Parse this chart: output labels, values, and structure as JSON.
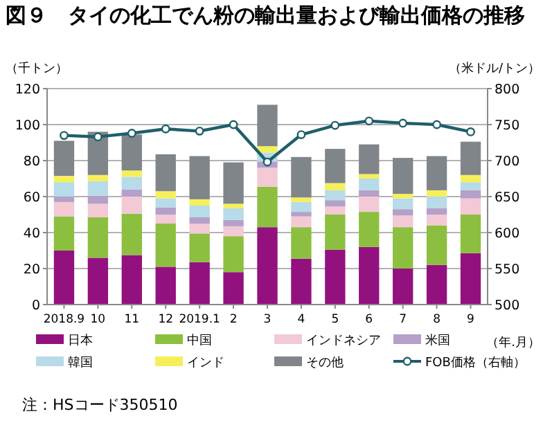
{
  "chart_data": {
    "type": "bar",
    "stacked": true,
    "title": "図９　タイの化工でん粉の輸出量および輸出価格の推移",
    "ylabel": "（千トン）",
    "y2label": "（米ドル/トン）",
    "xlabel": "（年.月）",
    "categories": [
      "2018.9",
      "10",
      "11",
      "12",
      "2019.1",
      "2",
      "3",
      "4",
      "5",
      "6",
      "7",
      "8",
      "9"
    ],
    "series": [
      {
        "name": "日本",
        "color": "#93117e",
        "values": [
          30,
          26,
          27.5,
          21,
          23.5,
          18,
          43,
          25.5,
          30.5,
          32,
          20,
          22,
          28.5
        ]
      },
      {
        "name": "中国",
        "color": "#8cbf3f",
        "values": [
          19,
          22.5,
          23,
          24,
          16,
          20,
          22.5,
          17.5,
          19.5,
          19.5,
          23,
          22,
          21.5
        ]
      },
      {
        "name": "インドネシア",
        "color": "#f2c9d4",
        "values": [
          8,
          7.5,
          9.5,
          5,
          5.5,
          5.5,
          10.5,
          6,
          4.5,
          8.5,
          6.5,
          6,
          9
        ]
      },
      {
        "name": "米国",
        "color": "#b4a0c8",
        "values": [
          3,
          4.5,
          4,
          4,
          3.5,
          3.5,
          3.5,
          2.5,
          3.5,
          3.5,
          3.5,
          3.5,
          4.5
        ]
      },
      {
        "name": "韓国",
        "color": "#b7dbe8",
        "values": [
          8,
          8,
          7,
          5,
          6.5,
          6.5,
          5,
          5.5,
          5.5,
          6.5,
          6,
          6.5,
          4.5
        ]
      },
      {
        "name": "インド",
        "color": "#f5f05a",
        "values": [
          3.5,
          3.5,
          3.5,
          4,
          3.5,
          2.5,
          3.5,
          2.5,
          4,
          2.5,
          2.5,
          3.5,
          4
        ]
      },
      {
        "name": "その他",
        "color": "#80858a",
        "values": [
          19.5,
          24,
          20,
          20.5,
          24,
          23,
          23,
          22.5,
          19,
          16.5,
          20,
          19,
          18.5
        ]
      },
      {
        "name": "FOB価格（右軸）",
        "type": "line",
        "axis": "y2",
        "marker": "circle",
        "color": "#1e5f6b",
        "values": [
          735,
          733,
          738,
          744,
          741,
          750,
          698,
          736,
          749,
          755,
          752,
          750,
          740
        ]
      }
    ],
    "ylim": [
      0,
      120
    ],
    "yticks": [
      0,
      20,
      40,
      60,
      80,
      100,
      120
    ],
    "y2lim": [
      500,
      800
    ],
    "y2ticks": [
      500,
      550,
      600,
      650,
      700,
      750,
      800
    ],
    "grid": "y",
    "legend": "bottom",
    "annotations": [
      "注：HSコード350510"
    ]
  }
}
